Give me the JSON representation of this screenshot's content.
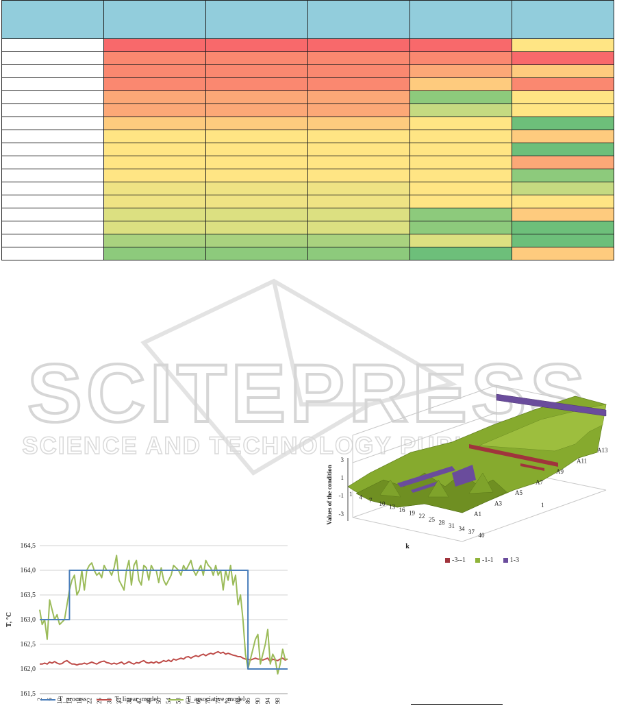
{
  "heatmap": {
    "colors": {
      "R": "#F8696B",
      "OR": "#FA8870",
      "O": "#FCA877",
      "OY": "#FECB7E",
      "Y": "#FFE584",
      "YL": "#EFE384",
      "YG": "#DCE081",
      "LG": "#C5DA81",
      "G": "#A9D27F",
      "GG": "#8DCA7C",
      "DG": "#6DBF7A"
    },
    "rows": [
      [
        "R",
        "R",
        "R",
        "R",
        "Y"
      ],
      [
        "OR",
        "OR",
        "OR",
        "OR",
        "R"
      ],
      [
        "OR",
        "OR",
        "OR",
        "O",
        "OY"
      ],
      [
        "OR",
        "OR",
        "OR",
        "OY",
        "OR"
      ],
      [
        "O",
        "O",
        "O",
        "GG",
        "Y"
      ],
      [
        "O",
        "O",
        "O",
        "LG",
        "Y"
      ],
      [
        "OY",
        "OY",
        "OY",
        "Y",
        "DG"
      ],
      [
        "Y",
        "Y",
        "Y",
        "Y",
        "OY"
      ],
      [
        "Y",
        "Y",
        "Y",
        "Y",
        "DG"
      ],
      [
        "Y",
        "Y",
        "Y",
        "Y",
        "O"
      ],
      [
        "Y",
        "Y",
        "Y",
        "Y",
        "GG"
      ],
      [
        "YL",
        "YL",
        "YL",
        "Y",
        "LG"
      ],
      [
        "YL",
        "YL",
        "YL",
        "Y",
        "Y"
      ],
      [
        "YG",
        "YG",
        "YG",
        "GG",
        "OY"
      ],
      [
        "YG",
        "YG",
        "YG",
        "GG",
        "DG"
      ],
      [
        "G",
        "G",
        "G",
        "YG",
        "DG"
      ],
      [
        "GG",
        "GG",
        "GG",
        "DG",
        "OY"
      ]
    ]
  },
  "watermark": {
    "brand": "SCITEPRESS",
    "tagline": "SCIENCE AND TECHNOLOGY PUBLICATIONS"
  },
  "line_chart": {
    "chart_data": {
      "type": "line",
      "xlabel": "t",
      "ylabel": "T, °C",
      "ylim": [
        161.5,
        164.5
      ],
      "yticks": [
        "164,5",
        "164,0",
        "163,5",
        "163,0",
        "162,5",
        "162,0",
        "161,5"
      ],
      "xticks": [
        "2",
        "6",
        "10",
        "14",
        "18",
        "22",
        "26",
        "30",
        "34",
        "38",
        "42",
        "46",
        "50",
        "54",
        "58",
        "62",
        "66",
        "70",
        "74",
        "78",
        "82",
        "86",
        "90",
        "94",
        "98"
      ],
      "grid": true,
      "legend": "bottom",
      "series": [
        {
          "name": "T_process",
          "color": "#4A7EBB",
          "values": [
            163,
            163,
            163,
            163,
            163,
            163,
            163,
            163,
            163,
            163,
            163,
            163,
            164,
            164,
            164,
            164,
            164,
            164,
            164,
            164,
            164,
            164,
            164,
            164,
            164,
            164,
            164,
            164,
            164,
            164,
            164,
            164,
            164,
            164,
            164,
            164,
            164,
            164,
            164,
            164,
            164,
            164,
            164,
            164,
            164,
            164,
            164,
            164,
            164,
            164,
            164,
            164,
            164,
            164,
            164,
            164,
            164,
            164,
            164,
            164,
            164,
            164,
            164,
            164,
            164,
            164,
            164,
            164,
            164,
            164,
            164,
            164,
            164,
            164,
            164,
            164,
            164,
            164,
            164,
            164,
            164,
            164,
            164,
            164,
            162,
            162,
            162,
            162,
            162,
            162,
            162,
            162,
            162,
            162,
            162,
            162,
            162,
            162,
            162,
            162,
            162
          ]
        },
        {
          "name": "T_linear_model",
          "color": "#BE4B48",
          "values": [
            162.1,
            162.1,
            162.12,
            162.1,
            162.14,
            162.12,
            162.15,
            162.12,
            162.1,
            162.11,
            162.15,
            162.17,
            162.13,
            162.1,
            162.1,
            162.08,
            162.1,
            162.1,
            162.12,
            162.1,
            162.12,
            162.14,
            162.12,
            162.1,
            162.13,
            162.15,
            162.16,
            162.13,
            162.12,
            162.1,
            162.12,
            162.1,
            162.12,
            162.14,
            162.1,
            162.12,
            162.15,
            162.12,
            162.1,
            162.13,
            162.12,
            162.15,
            162.17,
            162.13,
            162.12,
            162.14,
            162.12,
            162.15,
            162.12,
            162.14,
            162.17,
            162.15,
            162.18,
            162.15,
            162.2,
            162.18,
            162.2,
            162.22,
            162.2,
            162.24,
            162.25,
            162.22,
            162.25,
            162.27,
            162.25,
            162.28,
            162.3,
            162.27,
            162.3,
            162.32,
            162.3,
            162.33,
            162.35,
            162.32,
            162.34,
            162.3,
            162.32,
            162.3,
            162.28,
            162.27,
            162.25,
            162.25,
            162.22,
            162.2,
            162.2,
            162.18,
            162.2,
            162.22,
            162.2,
            162.2,
            162.18,
            162.2,
            162.22,
            162.15,
            162.2,
            162.18,
            162.17,
            162.2,
            162.22,
            162.18,
            162.2
          ]
        },
        {
          "name": "T_associative_model",
          "color": "#9BBB59",
          "values": [
            163.2,
            162.9,
            163,
            162.6,
            163.4,
            163.2,
            163.0,
            163.1,
            162.9,
            162.95,
            163.0,
            163.3,
            163.6,
            163.8,
            163.9,
            163.5,
            163.6,
            164.0,
            163.6,
            164.0,
            164.1,
            164.15,
            164.0,
            163.9,
            163.95,
            163.85,
            164.1,
            164.0,
            164.0,
            163.9,
            164.05,
            164.3,
            163.8,
            163.7,
            163.6,
            164.0,
            164.2,
            163.7,
            164.1,
            164.2,
            163.8,
            163.7,
            164.1,
            164.05,
            163.8,
            164.1,
            164.0,
            164.0,
            163.75,
            164.05,
            163.8,
            163.7,
            163.8,
            163.9,
            164.1,
            164.05,
            164.0,
            163.9,
            164.1,
            164.0,
            164.1,
            164.2,
            164.0,
            163.9,
            164.0,
            164.1,
            163.9,
            164.2,
            164.1,
            164.05,
            163.9,
            164.1,
            163.9,
            164.0,
            163.6,
            164.0,
            163.8,
            164.1,
            163.7,
            163.9,
            163.3,
            163.5,
            163.0,
            162.3,
            162.0,
            162.2,
            162.4,
            162.6,
            162.7,
            162.1,
            162.3,
            162.5,
            162.8,
            162.1,
            162.3,
            162.2,
            161.9,
            162.1,
            162.4,
            162.2,
            162.2
          ]
        }
      ]
    }
  },
  "surface_chart": {
    "chart_data": {
      "type": "surface",
      "zlabel": "Values of the condition",
      "xlabel": "k",
      "zticks": [
        "3",
        "1",
        "-1",
        "-3"
      ],
      "kticks": [
        "1",
        "4",
        "7",
        "10",
        "13",
        "16",
        "19",
        "22",
        "25",
        "28",
        "31",
        "34",
        "37",
        "40"
      ],
      "series_labels": [
        "A1",
        "A3",
        "A5",
        "A7",
        "A9",
        "A11",
        "A13"
      ],
      "depth_label": "1",
      "legend": [
        {
          "name": "-3--1",
          "color": "#A0343C"
        },
        {
          "name": "-1-1",
          "color": "#8FB33A"
        },
        {
          "name": "1-3",
          "color": "#6A4C9C"
        }
      ]
    }
  }
}
